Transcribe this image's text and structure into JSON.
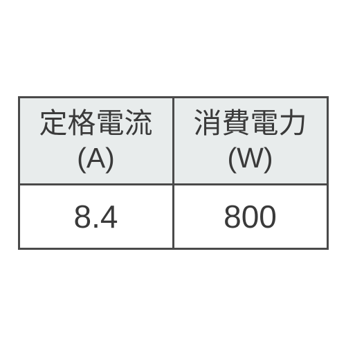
{
  "table": {
    "columns": [
      {
        "label": "定格電流",
        "unit": "(A)",
        "value": "8.4"
      },
      {
        "label": "消費電力",
        "unit": "(W)",
        "value": "800"
      }
    ],
    "border_color": "#4a4a4a",
    "border_width": 3,
    "header_bg": "#e8ecec",
    "value_bg": "#ffffff",
    "text_color": "#3a3a3a",
    "header_fontsize": 41,
    "value_fontsize": 46
  }
}
